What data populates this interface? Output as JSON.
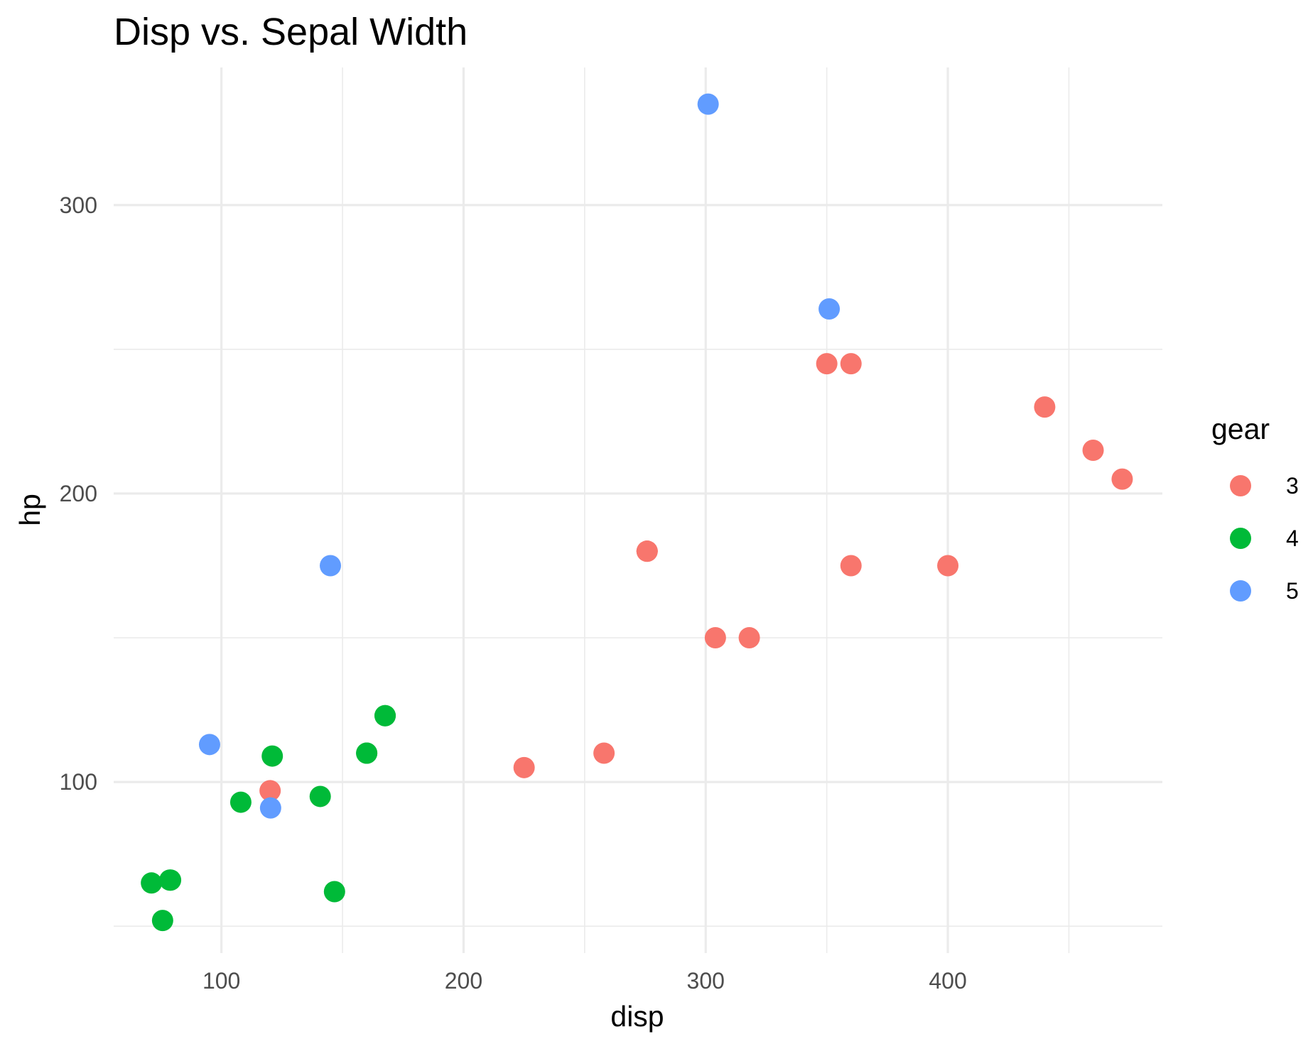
{
  "chart_data": {
    "type": "scatter",
    "title": "Disp vs. Sepal Width",
    "xlabel": "disp",
    "ylabel": "hp",
    "xlim": [
      55.5,
      488.6
    ],
    "ylim": [
      40.7,
      347.7
    ],
    "x_ticks": [
      100,
      200,
      300,
      400
    ],
    "x_minor_ticks": [
      150,
      250,
      350,
      450
    ],
    "y_ticks": [
      100,
      200,
      300
    ],
    "y_minor_ticks": [
      50,
      150,
      250
    ],
    "grid": true,
    "legend": {
      "title": "gear",
      "placement": "right",
      "entries": [
        "3",
        "4",
        "5"
      ]
    },
    "colors": {
      "3": "#F8766D",
      "4": "#00BA38",
      "5": "#619CFF"
    },
    "series": [
      {
        "name": "3",
        "points": [
          [
            258,
            110
          ],
          [
            360,
            175
          ],
          [
            225,
            105
          ],
          [
            360,
            245
          ],
          [
            275.8,
            180
          ],
          [
            275.8,
            180
          ],
          [
            275.8,
            180
          ],
          [
            472,
            205
          ],
          [
            460,
            215
          ],
          [
            440,
            230
          ],
          [
            120.1,
            97
          ],
          [
            318,
            150
          ],
          [
            304,
            150
          ],
          [
            350,
            245
          ],
          [
            400,
            175
          ]
        ]
      },
      {
        "name": "4",
        "points": [
          [
            160,
            110
          ],
          [
            160,
            110
          ],
          [
            108,
            93
          ],
          [
            146.7,
            62
          ],
          [
            140.8,
            95
          ],
          [
            167.6,
            123
          ],
          [
            167.6,
            123
          ],
          [
            78.7,
            66
          ],
          [
            75.7,
            52
          ],
          [
            71.1,
            65
          ],
          [
            79,
            66
          ],
          [
            121,
            109
          ]
        ]
      },
      {
        "name": "5",
        "points": [
          [
            120.3,
            91
          ],
          [
            95.1,
            113
          ],
          [
            351,
            264
          ],
          [
            145,
            175
          ],
          [
            301,
            335
          ]
        ]
      }
    ]
  }
}
